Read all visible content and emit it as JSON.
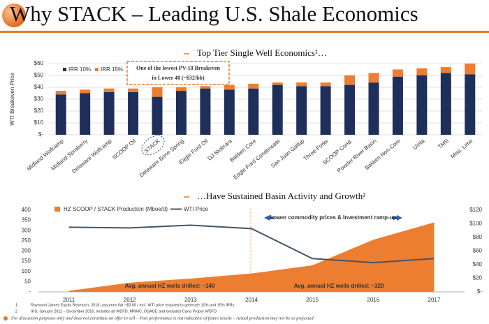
{
  "header": {
    "title": "Why STACK – Leading U.S. Shale Economics"
  },
  "chart_data": [
    {
      "type": "bar",
      "title": "Top Tier Single Well Economics¹…",
      "y_label": "WTI Breakeven Price",
      "stacked": true,
      "grid": true,
      "categories": [
        "Midland Wolfcamp",
        "Midland Spraberry",
        "Delaware Wolfcamp",
        "SCOOP Oil",
        "STACK",
        "Delaware Bone Spring",
        "Eagle Ford Oil",
        "DJ Niobrara",
        "Bakken Core",
        "Eagle Ford Condensate",
        "San Juan Gallup",
        "Three Forks",
        "SCOOP Cond.",
        "Powder River Basin",
        "Bakken Non-Core",
        "Uinta",
        "TMS",
        "Miss. Lime"
      ],
      "series": [
        {
          "name": "IRR 10%",
          "color": "#1f2f5c",
          "values": [
            34,
            35,
            36,
            36,
            32,
            37,
            39,
            38,
            39,
            42,
            41,
            41,
            42,
            44,
            49,
            50,
            52,
            51
          ]
        },
        {
          "name": "IRR 15%",
          "color": "#ed7d31",
          "values": [
            3,
            3,
            3,
            3,
            8,
            3,
            2,
            4,
            4,
            2,
            3,
            3,
            8,
            8,
            6,
            6,
            5,
            9
          ]
        }
      ],
      "ylim": [
        0,
        60
      ],
      "yticks": [
        {
          "value": 0,
          "label": "$-"
        },
        {
          "value": 10,
          "label": "$10"
        },
        {
          "value": 20,
          "label": "$20"
        },
        {
          "value": 30,
          "label": "$30"
        },
        {
          "value": 40,
          "label": "$40"
        },
        {
          "value": 50,
          "label": "$50"
        },
        {
          "value": 60,
          "label": "$60"
        }
      ],
      "annotation": [
        "One of the lowest PV-10 Breakeven",
        "in Lower 48 (~$32/bb)"
      ]
    },
    {
      "type": "combo",
      "title": "…Have Sustained Basin Activity and Growth²",
      "categories": [
        "2011",
        "2012",
        "2013",
        "2014",
        "2015",
        "2016",
        "2017"
      ],
      "series": [
        {
          "name": "HZ SCOOP / STACK Production (Mboe/d)",
          "kind": "area",
          "color": "#ed7d31",
          "values": [
            5,
            45,
            65,
            90,
            130,
            255,
            340
          ]
        },
        {
          "name": "WTI Price",
          "kind": "line",
          "axis": "y2",
          "color": "#44546a",
          "values": [
            95,
            94,
            98,
            93,
            49,
            43,
            49
          ]
        }
      ],
      "ylim": [
        0,
        400
      ],
      "yticks": [
        {
          "value": 0,
          "label": "-"
        },
        50,
        100,
        150,
        200,
        250,
        300,
        350,
        400
      ],
      "y2lim": [
        0,
        120
      ],
      "y2ticks": [
        {
          "value": 0,
          "label": "$-"
        },
        {
          "value": 20,
          "label": "$20"
        },
        {
          "value": 40,
          "label": "$40"
        },
        {
          "value": 60,
          "label": "$60"
        },
        {
          "value": 80,
          "label": "$80"
        },
        {
          "value": 100,
          "label": "$100"
        },
        {
          "value": 120,
          "label": "$120"
        }
      ],
      "annotations": [
        "Lower commodity prices & Investment ramp-up",
        "Avg. annual HZ wells drilled: ~140",
        "Avg. annual HZ wells drilled: ~320"
      ]
    }
  ],
  "footnotes": [
    {
      "num": "1",
      "text": "Raymond James Equity Research, 2016; assumes flat ~$3.00 / mcf. WTI price required to generate 10% and 15% IRRs"
    },
    {
      "num": "2",
      "text": "IHS; January 2011 – December 2016, includes all WDFD, MRMC, OSAGE and excludes Cana Proper WDFD"
    }
  ],
  "disclaimer": "For discussion purposes only and does not constitute an offer to sell – Past performance is not indicative of future results – Actual production may not be as projected"
}
